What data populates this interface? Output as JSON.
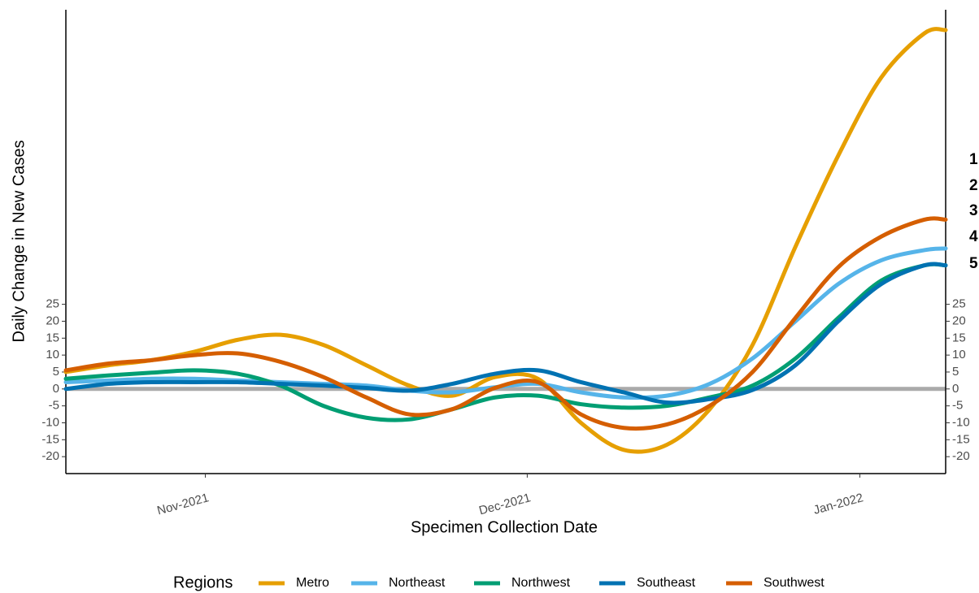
{
  "chart_data": {
    "type": "line",
    "x_label": "Specimen Collection Date",
    "y_label": "Daily Change in New Cases",
    "legend_title": "Regions",
    "x": [
      0,
      4,
      8,
      12,
      16,
      20,
      24,
      28,
      32,
      36,
      40,
      44,
      48,
      52,
      56,
      60,
      64,
      68,
      72,
      76,
      80,
      82
    ],
    "xlim": [
      0,
      82
    ],
    "xticks": [
      {
        "value": 13,
        "label": "Nov-2021"
      },
      {
        "value": 43,
        "label": "Dec-2021"
      },
      {
        "value": 74,
        "label": "Jan-2022"
      }
    ],
    "ylim": [
      -25,
      112
    ],
    "yticks": [
      -20,
      -15,
      -10,
      -5,
      0,
      5,
      10,
      15,
      20,
      25
    ],
    "reference_line": 0,
    "annotations": [
      "1",
      "2",
      "3",
      "4",
      "5"
    ],
    "series": [
      {
        "name": "Metro",
        "color": "#E69F00",
        "values": [
          5,
          7,
          8.5,
          11,
          14.5,
          16,
          13,
          7,
          1,
          -2,
          3.5,
          3,
          -10,
          -18,
          -16.5,
          -6,
          13,
          42,
          69,
          92,
          105,
          106
        ]
      },
      {
        "name": "Northeast",
        "color": "#56B4E9",
        "values": [
          2,
          2.5,
          3,
          3,
          2.5,
          2,
          1.5,
          1,
          -0.5,
          -1,
          0.5,
          1.5,
          -1,
          -2.5,
          -2,
          1.5,
          9,
          20,
          31,
          38,
          41,
          41.5
        ]
      },
      {
        "name": "Northwest",
        "color": "#009E73",
        "values": [
          3,
          4,
          4.8,
          5.5,
          4.5,
          1,
          -5,
          -8.5,
          -9,
          -6,
          -2.5,
          -2,
          -4.5,
          -5.5,
          -5,
          -2.5,
          1,
          9,
          21,
          32,
          36.5,
          36.5
        ]
      },
      {
        "name": "Southeast",
        "color": "#0072B2",
        "values": [
          0,
          1.5,
          2,
          2,
          2,
          1.5,
          1,
          0.3,
          -0.5,
          1.5,
          4.5,
          5.5,
          2,
          -1,
          -4,
          -3,
          -0.3,
          7,
          20,
          31,
          36.5,
          36.5
        ]
      },
      {
        "name": "Southwest",
        "color": "#D55E00",
        "values": [
          5.5,
          7.5,
          8.5,
          10,
          10.5,
          8,
          3.5,
          -2.5,
          -7.5,
          -6,
          0.3,
          2,
          -7.5,
          -11.5,
          -10.5,
          -5,
          5,
          21,
          36,
          45,
          50,
          50
        ]
      }
    ]
  }
}
